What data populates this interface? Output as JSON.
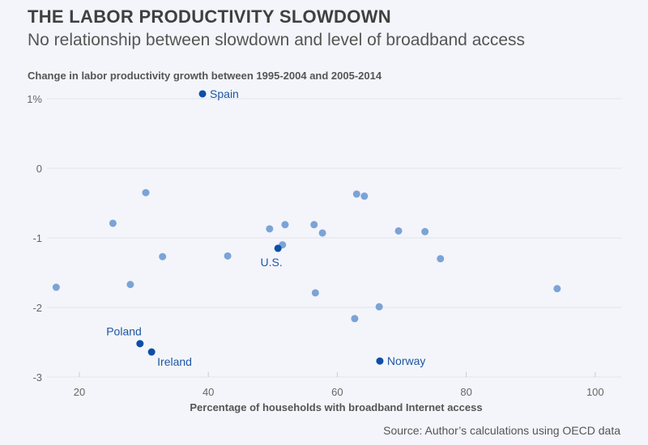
{
  "header": {
    "title": "THE LABOR PRODUCTIVITY SLOWDOWN",
    "subtitle": "No relationship between slowdown and level of broadband access"
  },
  "footer": {
    "source": "Source: Author’s calculations using OECD data"
  },
  "chart_data": {
    "type": "scatter",
    "title": "THE LABOR PRODUCTIVITY SLOWDOWN",
    "subtitle": "No relationship between slowdown and level of broadband access",
    "ylabel": "Change in labor productivity growth between 1995-2004 and 2005-2014",
    "xlabel": "Percentage of households with broadband Internet access",
    "xlim": [
      13,
      104
    ],
    "ylim": [
      -3,
      1.1
    ],
    "xticks": [
      20,
      40,
      60,
      80,
      100
    ],
    "xtick_labels": [
      "20",
      "40",
      "60",
      "80",
      "100"
    ],
    "yticks": [
      1,
      0,
      -1,
      -2,
      -3
    ],
    "ytick_labels": [
      "1%",
      "0",
      "-1",
      "-2",
      "-3"
    ],
    "grid": "horizontal",
    "colors": {
      "highlight": "#0d4ea6",
      "other": "#7ca3d6",
      "label": "#1f56a3",
      "grid": "#e2e5ec"
    },
    "highlighted": [
      {
        "name": "Spain",
        "x": 39.1,
        "y": 1.07,
        "label_pos": "right"
      },
      {
        "name": "U.S.",
        "x": 50.8,
        "y": -1.15,
        "label_pos": "below-left"
      },
      {
        "name": "Poland",
        "x": 29.4,
        "y": -2.52,
        "label_pos": "above-left"
      },
      {
        "name": "Ireland",
        "x": 31.2,
        "y": -2.64,
        "label_pos": "below-right"
      },
      {
        "name": "Norway",
        "x": 66.6,
        "y": -2.77,
        "label_pos": "right"
      }
    ],
    "others": [
      {
        "x": 30.3,
        "y": -0.35
      },
      {
        "x": 25.2,
        "y": -0.79
      },
      {
        "x": 32.9,
        "y": -1.27
      },
      {
        "x": 43.0,
        "y": -1.26
      },
      {
        "x": 16.4,
        "y": -1.71
      },
      {
        "x": 27.9,
        "y": -1.67
      },
      {
        "x": 49.5,
        "y": -0.87
      },
      {
        "x": 51.9,
        "y": -0.81
      },
      {
        "x": 56.4,
        "y": -0.81
      },
      {
        "x": 57.7,
        "y": -0.93
      },
      {
        "x": 51.5,
        "y": -1.1
      },
      {
        "x": 63.0,
        "y": -0.37
      },
      {
        "x": 64.2,
        "y": -0.4
      },
      {
        "x": 69.5,
        "y": -0.9
      },
      {
        "x": 73.6,
        "y": -0.91
      },
      {
        "x": 76.0,
        "y": -1.3
      },
      {
        "x": 56.6,
        "y": -1.79
      },
      {
        "x": 62.7,
        "y": -2.16
      },
      {
        "x": 66.5,
        "y": -1.99
      },
      {
        "x": 94.1,
        "y": -1.73
      }
    ]
  }
}
